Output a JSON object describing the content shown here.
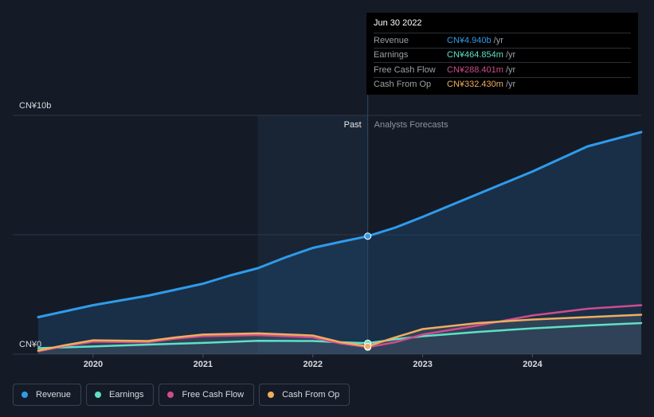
{
  "chart_data": {
    "type": "line",
    "y_top_label": "CN¥10b",
    "y_bottom_label": "CN¥0",
    "ylim": [
      0,
      10
    ],
    "xlim": [
      2019.5,
      2024.99
    ],
    "x_ticks": [
      {
        "value": 2020,
        "label": "2020"
      },
      {
        "value": 2021,
        "label": "2021"
      },
      {
        "value": 2022,
        "label": "2022"
      },
      {
        "value": 2023,
        "label": "2023"
      },
      {
        "value": 2024,
        "label": "2024"
      }
    ],
    "past_label": "Past",
    "forecast_label": "Analysts Forecasts",
    "divider_x": 2022.5,
    "shade_start_x": 2021.5,
    "series": [
      {
        "name": "Revenue",
        "color": "#2f9bea",
        "unit": "b",
        "points": [
          [
            2019.5,
            1.55
          ],
          [
            2019.75,
            1.8
          ],
          [
            2020,
            2.05
          ],
          [
            2020.25,
            2.25
          ],
          [
            2020.5,
            2.45
          ],
          [
            2020.75,
            2.7
          ],
          [
            2021,
            2.95
          ],
          [
            2021.25,
            3.3
          ],
          [
            2021.5,
            3.6
          ],
          [
            2021.75,
            4.05
          ],
          [
            2022,
            4.45
          ],
          [
            2022.25,
            4.7
          ],
          [
            2022.5,
            4.94
          ],
          [
            2022.75,
            5.3
          ],
          [
            2023,
            5.75
          ],
          [
            2023.5,
            6.7
          ],
          [
            2024,
            7.65
          ],
          [
            2024.5,
            8.7
          ],
          [
            2024.99,
            9.3
          ]
        ]
      },
      {
        "name": "Earnings",
        "color": "#5de1c6",
        "unit": "b",
        "points": [
          [
            2019.5,
            0.25
          ],
          [
            2020,
            0.32
          ],
          [
            2020.5,
            0.4
          ],
          [
            2021,
            0.47
          ],
          [
            2021.5,
            0.56
          ],
          [
            2022,
            0.55
          ],
          [
            2022.25,
            0.5
          ],
          [
            2022.5,
            0.46
          ],
          [
            2022.75,
            0.62
          ],
          [
            2023,
            0.75
          ],
          [
            2023.5,
            0.93
          ],
          [
            2024,
            1.08
          ],
          [
            2024.5,
            1.2
          ],
          [
            2024.99,
            1.3
          ]
        ]
      },
      {
        "name": "Free Cash Flow",
        "color": "#cf4c8e",
        "unit": "m",
        "points": [
          [
            2019.5,
            0.12
          ],
          [
            2019.75,
            0.35
          ],
          [
            2020,
            0.52
          ],
          [
            2020.5,
            0.5
          ],
          [
            2020.75,
            0.65
          ],
          [
            2021,
            0.75
          ],
          [
            2021.5,
            0.8
          ],
          [
            2022,
            0.7
          ],
          [
            2022.25,
            0.45
          ],
          [
            2022.5,
            0.29
          ],
          [
            2022.75,
            0.5
          ],
          [
            2023,
            0.82
          ],
          [
            2023.5,
            1.2
          ],
          [
            2024,
            1.62
          ],
          [
            2024.5,
            1.9
          ],
          [
            2024.99,
            2.05
          ]
        ]
      },
      {
        "name": "Cash From Op",
        "color": "#f0ad5e",
        "unit": "m",
        "points": [
          [
            2019.5,
            0.15
          ],
          [
            2019.75,
            0.38
          ],
          [
            2020,
            0.58
          ],
          [
            2020.5,
            0.55
          ],
          [
            2020.75,
            0.7
          ],
          [
            2021,
            0.82
          ],
          [
            2021.5,
            0.87
          ],
          [
            2022,
            0.78
          ],
          [
            2022.25,
            0.5
          ],
          [
            2022.5,
            0.33
          ],
          [
            2022.75,
            0.7
          ],
          [
            2023,
            1.05
          ],
          [
            2023.5,
            1.3
          ],
          [
            2024,
            1.45
          ],
          [
            2024.5,
            1.55
          ],
          [
            2024.99,
            1.65
          ]
        ]
      }
    ],
    "highlight_x": 2022.5
  },
  "tooltip": {
    "date": "Jun 30 2022",
    "unit": "/yr",
    "rows": [
      {
        "label": "Revenue",
        "value": "CN¥4.940b",
        "color": "#2f9bea"
      },
      {
        "label": "Earnings",
        "value": "CN¥464.854m",
        "color": "#5de1c6"
      },
      {
        "label": "Free Cash Flow",
        "value": "CN¥288.401m",
        "color": "#cf4c8e"
      },
      {
        "label": "Cash From Op",
        "value": "CN¥332.430m",
        "color": "#f0ad5e"
      }
    ]
  },
  "legend": [
    {
      "label": "Revenue",
      "color": "#2f9bea"
    },
    {
      "label": "Earnings",
      "color": "#5de1c6"
    },
    {
      "label": "Free Cash Flow",
      "color": "#cf4c8e"
    },
    {
      "label": "Cash From Op",
      "color": "#f0ad5e"
    }
  ]
}
